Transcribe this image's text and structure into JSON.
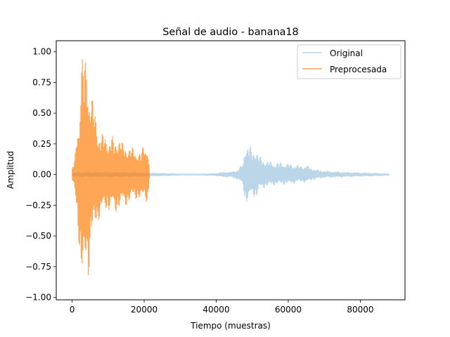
{
  "chart_data": {
    "type": "line",
    "title": "Señal de audio - banana18",
    "xlabel": "Tiempo (muestras)",
    "ylabel": "Amplitud",
    "xlim": [
      -4400,
      92400
    ],
    "ylim": [
      -1.02,
      1.09
    ],
    "xticks": [
      0,
      20000,
      40000,
      60000,
      80000
    ],
    "yticks": [
      -1.0,
      -0.75,
      -0.5,
      -0.25,
      0.0,
      0.25,
      0.5,
      0.75,
      1.0
    ],
    "ytick_labels": [
      "−1.00",
      "−0.75",
      "−0.50",
      "−0.25",
      "0.00",
      "0.25",
      "0.50",
      "0.75",
      "1.00"
    ],
    "grid": false,
    "legend_position": "top-right",
    "series": [
      {
        "name": "Original",
        "color": "#1f77b4",
        "alpha": 0.3,
        "envelope": {
          "x": [
            0,
            2000,
            4000,
            6000,
            10000,
            15000,
            20000,
            25000,
            30000,
            36000,
            40000,
            42000,
            44000,
            46000,
            47500,
            48000,
            49000,
            50000,
            51000,
            52000,
            54000,
            56000,
            58000,
            60000,
            62000,
            64000,
            65000,
            66000,
            68000,
            70000,
            75000,
            80000,
            85000,
            88000
          ],
          "upper": [
            0.01,
            0.02,
            0.02,
            0.02,
            0.02,
            0.02,
            0.015,
            0.01,
            0.005,
            0.005,
            0.01,
            0.02,
            0.02,
            0.04,
            0.1,
            0.26,
            0.25,
            0.2,
            0.22,
            0.15,
            0.12,
            0.1,
            0.1,
            0.09,
            0.08,
            0.07,
            0.08,
            0.06,
            0.04,
            0.03,
            0.02,
            0.015,
            0.01,
            0.005
          ],
          "lower": [
            -0.01,
            -0.02,
            -0.02,
            -0.02,
            -0.02,
            -0.02,
            -0.015,
            -0.01,
            -0.005,
            -0.005,
            -0.01,
            -0.02,
            -0.02,
            -0.04,
            -0.1,
            -0.24,
            -0.22,
            -0.18,
            -0.2,
            -0.13,
            -0.1,
            -0.09,
            -0.08,
            -0.08,
            -0.07,
            -0.06,
            -0.07,
            -0.05,
            -0.035,
            -0.025,
            -0.02,
            -0.015,
            -0.01,
            -0.005
          ]
        }
      },
      {
        "name": "Preprocesada",
        "color": "#ff7f0e",
        "alpha": 0.7,
        "envelope": {
          "x": [
            0,
            500,
            1000,
            1500,
            2000,
            2500,
            3000,
            3500,
            4000,
            4500,
            5000,
            5500,
            6000,
            7000,
            8000,
            9000,
            10000,
            11000,
            12000,
            13000,
            14000,
            15000,
            16000,
            17000,
            18000,
            19000,
            20000,
            21000,
            21500
          ],
          "upper": [
            0.05,
            0.1,
            0.2,
            0.45,
            0.5,
            0.98,
            0.99,
            0.97,
            1.0,
            0.88,
            0.7,
            0.65,
            0.6,
            0.42,
            0.33,
            0.34,
            0.3,
            0.32,
            0.28,
            0.33,
            0.26,
            0.24,
            0.23,
            0.22,
            0.2,
            0.18,
            0.26,
            0.25,
            0.02
          ],
          "lower": [
            -0.05,
            -0.1,
            -0.22,
            -0.42,
            -0.6,
            -0.9,
            -0.92,
            -0.85,
            -0.7,
            -0.88,
            -0.62,
            -0.55,
            -0.45,
            -0.4,
            -0.34,
            -0.3,
            -0.3,
            -0.28,
            -0.33,
            -0.27,
            -0.26,
            -0.26,
            -0.22,
            -0.2,
            -0.2,
            -0.22,
            -0.18,
            -0.25,
            -0.02
          ]
        }
      }
    ]
  }
}
